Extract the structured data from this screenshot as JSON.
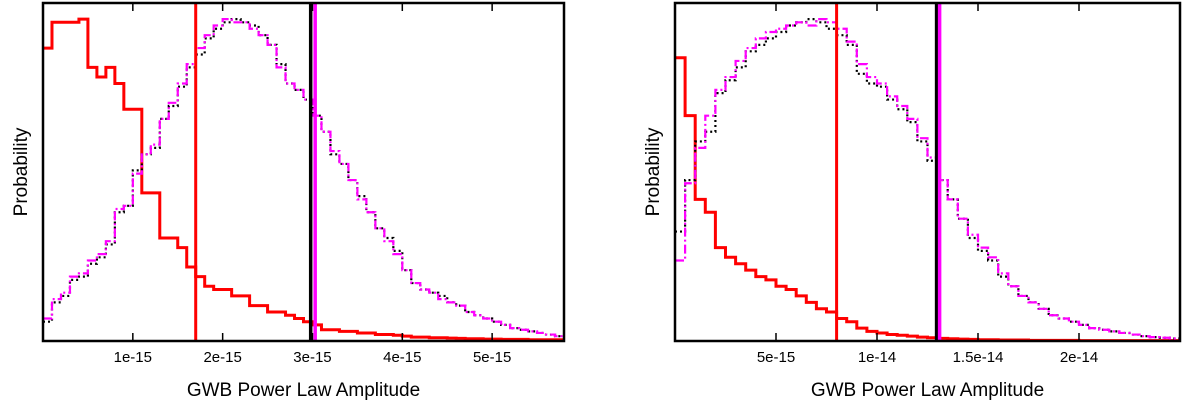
{
  "chart_data": [
    {
      "type": "histogram",
      "xlabel": "GWB Power Law Amplitude",
      "ylabel": "Probability",
      "xlim": [
        0,
        5.8e-15
      ],
      "ylim": [
        0,
        1.05
      ],
      "y_tick_labels_shown": false,
      "grid": false,
      "bin_width": 1e-16,
      "x_ticks": [
        {
          "value": 1e-15,
          "label": "1e-15"
        },
        {
          "value": 2e-15,
          "label": "2e-15"
        },
        {
          "value": 3e-15,
          "label": "3e-15"
        },
        {
          "value": 4e-15,
          "label": "4e-15"
        },
        {
          "value": 5e-15,
          "label": "5e-15"
        }
      ],
      "series": [
        {
          "key": "red",
          "style": "solid",
          "color": "#ff0000",
          "bin_start": 0,
          "values": [
            0.91,
            0.99,
            0.99,
            0.99,
            1.0,
            0.85,
            0.82,
            0.85,
            0.8,
            0.72,
            0.72,
            0.46,
            0.46,
            0.32,
            0.32,
            0.29,
            0.23,
            0.2,
            0.17,
            0.16,
            0.16,
            0.14,
            0.14,
            0.11,
            0.11,
            0.09,
            0.09,
            0.08,
            0.07,
            0.06,
            0.05,
            0.035,
            0.035,
            0.03,
            0.03,
            0.025,
            0.025,
            0.02,
            0.02,
            0.018,
            0.015,
            0.012,
            0.012,
            0.01,
            0.01,
            0.009,
            0.008,
            0.007,
            0.007,
            0.006,
            0.006,
            0.005,
            0.005,
            0.005,
            0.004,
            0.004,
            0.004,
            0.004
          ]
        },
        {
          "key": "black",
          "style": "dotted",
          "color": "#000000",
          "bin_start": 0,
          "values": [
            0.06,
            0.12,
            0.14,
            0.19,
            0.2,
            0.24,
            0.26,
            0.3,
            0.4,
            0.42,
            0.53,
            0.58,
            0.6,
            0.69,
            0.73,
            0.79,
            0.85,
            0.89,
            0.94,
            0.97,
            0.99,
            1.0,
            0.99,
            0.98,
            0.95,
            0.92,
            0.86,
            0.8,
            0.78,
            0.75,
            0.7,
            0.65,
            0.58,
            0.55,
            0.5,
            0.45,
            0.4,
            0.35,
            0.32,
            0.28,
            0.22,
            0.18,
            0.16,
            0.15,
            0.14,
            0.12,
            0.11,
            0.09,
            0.08,
            0.07,
            0.06,
            0.05,
            0.04,
            0.035,
            0.03,
            0.025,
            0.02,
            0.015
          ]
        },
        {
          "key": "magenta",
          "style": "dash-dot",
          "color": "#ff00ff",
          "bin_start": 0,
          "values": [
            0.07,
            0.13,
            0.15,
            0.2,
            0.21,
            0.25,
            0.27,
            0.31,
            0.41,
            0.42,
            0.52,
            0.58,
            0.61,
            0.69,
            0.74,
            0.8,
            0.86,
            0.91,
            0.95,
            0.98,
            1.0,
            0.99,
            0.99,
            0.97,
            0.95,
            0.92,
            0.85,
            0.8,
            0.78,
            0.75,
            0.7,
            0.65,
            0.59,
            0.55,
            0.5,
            0.44,
            0.4,
            0.35,
            0.31,
            0.27,
            0.22,
            0.18,
            0.16,
            0.15,
            0.13,
            0.12,
            0.11,
            0.09,
            0.08,
            0.07,
            0.06,
            0.05,
            0.04,
            0.035,
            0.03,
            0.025,
            0.02,
            0.015
          ]
        }
      ],
      "vertical_lines": [
        {
          "x": 1.7e-15,
          "color": "#ff0000"
        },
        {
          "x": 2.98e-15,
          "color": "#000000"
        },
        {
          "x": 3.03e-15,
          "color": "#ff00ff"
        }
      ]
    },
    {
      "type": "histogram",
      "xlabel": "GWB Power Law Amplitude",
      "ylabel": "Probability",
      "xlim": [
        0,
        2.5e-14
      ],
      "ylim": [
        0,
        1.05
      ],
      "y_tick_labels_shown": false,
      "grid": false,
      "bin_width": 5e-16,
      "x_ticks": [
        {
          "value": 5e-15,
          "label": "5e-15"
        },
        {
          "value": 1e-14,
          "label": "1e-14"
        },
        {
          "value": 1.5e-14,
          "label": "1.5e-14"
        },
        {
          "value": 2e-14,
          "label": "2e-14"
        }
      ],
      "series": [
        {
          "key": "red",
          "style": "solid",
          "color": "#ff0000",
          "bin_start": 0,
          "values": [
            0.88,
            0.7,
            0.44,
            0.4,
            0.29,
            0.26,
            0.24,
            0.22,
            0.2,
            0.19,
            0.17,
            0.16,
            0.14,
            0.12,
            0.1,
            0.09,
            0.07,
            0.06,
            0.04,
            0.03,
            0.025,
            0.02,
            0.018,
            0.015,
            0.012,
            0.01,
            0.008,
            0.007,
            0.006,
            0.005,
            0.004,
            0.004,
            0.003,
            0.003,
            0.003,
            0.002,
            0.002,
            0.002,
            0.002,
            0.002,
            0.001,
            0.001,
            0.001,
            0.001,
            0.001,
            0.001,
            0.001,
            0.001,
            0.001,
            0.001
          ]
        },
        {
          "key": "black",
          "style": "dotted",
          "color": "#000000",
          "bin_start": 0,
          "values": [
            0.34,
            0.5,
            0.62,
            0.65,
            0.77,
            0.81,
            0.85,
            0.9,
            0.92,
            0.94,
            0.96,
            0.98,
            0.99,
            1.0,
            0.99,
            0.97,
            0.95,
            0.92,
            0.83,
            0.8,
            0.79,
            0.75,
            0.72,
            0.68,
            0.62,
            0.56,
            0.5,
            0.44,
            0.38,
            0.32,
            0.28,
            0.25,
            0.2,
            0.17,
            0.14,
            0.12,
            0.1,
            0.08,
            0.07,
            0.06,
            0.05,
            0.04,
            0.035,
            0.03,
            0.025,
            0.02,
            0.015,
            0.012,
            0.01,
            0.008
          ]
        },
        {
          "key": "magenta",
          "style": "dash-dot",
          "color": "#ff00ff",
          "bin_start": 0,
          "values": [
            0.25,
            0.49,
            0.6,
            0.7,
            0.78,
            0.82,
            0.87,
            0.91,
            0.94,
            0.96,
            0.97,
            0.98,
            0.99,
            0.98,
            1.0,
            0.99,
            0.97,
            0.93,
            0.86,
            0.82,
            0.8,
            0.76,
            0.73,
            0.69,
            0.63,
            0.57,
            0.5,
            0.44,
            0.38,
            0.33,
            0.29,
            0.26,
            0.21,
            0.17,
            0.14,
            0.12,
            0.1,
            0.08,
            0.07,
            0.06,
            0.05,
            0.04,
            0.035,
            0.03,
            0.025,
            0.02,
            0.015,
            0.012,
            0.01,
            0.008
          ]
        }
      ],
      "vertical_lines": [
        {
          "x": 8e-15,
          "color": "#ff0000"
        },
        {
          "x": 1.295e-14,
          "color": "#000000"
        },
        {
          "x": 1.31e-14,
          "color": "#ff00ff"
        }
      ]
    }
  ]
}
